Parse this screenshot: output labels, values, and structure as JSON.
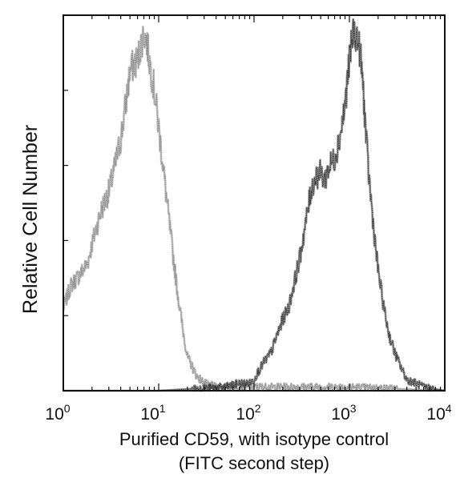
{
  "chart_data": {
    "type": "area",
    "title": "",
    "xlabel": "Purified CD59, with isotype control",
    "xlabel_line2": "(FITC second step)",
    "ylabel": "Relative Cell Number",
    "x_scale": "log",
    "xlim": [
      1,
      10000
    ],
    "ylim": [
      0,
      100
    ],
    "x_ticks": [
      {
        "value": 1,
        "base": "10",
        "exp": "0"
      },
      {
        "value": 10,
        "base": "10",
        "exp": "1"
      },
      {
        "value": 100,
        "base": "10",
        "exp": "2"
      },
      {
        "value": 1000,
        "base": "10",
        "exp": "3"
      },
      {
        "value": 10000,
        "base": "10",
        "exp": "4"
      }
    ],
    "grid": false,
    "legend": "none",
    "series": [
      {
        "color": "#8a8a8a",
        "x": [
          1.0,
          1.2,
          1.5,
          1.8,
          2.0,
          2.2,
          2.5,
          3.0,
          3.5,
          4.0,
          4.5,
          5.0,
          5.5,
          6.0,
          6.5,
          7.0,
          7.5,
          8.0,
          9.0,
          10.0,
          11.0,
          12.0,
          14.0,
          16.0,
          18.0,
          20.0,
          25.0,
          30.0,
          40.0,
          60.0,
          100.0,
          200.0,
          1000.0,
          10000.0
        ],
        "y": [
          22,
          28,
          31,
          34,
          39,
          43,
          48,
          53,
          60,
          67,
          76,
          85,
          87,
          88,
          92,
          95,
          93,
          88,
          80,
          70,
          61,
          52,
          37,
          25,
          16,
          9,
          4,
          2,
          1,
          1,
          1,
          1,
          1,
          0
        ]
      },
      {
        "color": "#333333",
        "x": [
          1.0,
          10.0,
          50.0,
          70.0,
          90.0,
          100.0,
          110.0,
          130.0,
          150.0,
          170.0,
          200.0,
          230.0,
          260.0,
          300.0,
          350.0,
          400.0,
          450.0,
          500.0,
          550.0,
          600.0,
          700.0,
          800.0,
          900.0,
          1000.0,
          1100.0,
          1200.0,
          1300.0,
          1400.0,
          1500.0,
          1600.0,
          1800.0,
          2000.0,
          2300.0,
          2600.0,
          3000.0,
          3500.0,
          4000.0,
          5000.0,
          6000.0,
          10000.0
        ],
        "y": [
          0,
          0,
          1,
          2,
          2,
          3,
          5,
          8,
          10,
          14,
          19,
          22,
          28,
          35,
          45,
          54,
          57,
          58,
          56,
          59,
          62,
          68,
          76,
          88,
          96,
          94,
          90,
          80,
          67,
          57,
          43,
          32,
          22,
          15,
          10,
          6,
          3,
          2,
          1,
          0
        ]
      }
    ]
  }
}
